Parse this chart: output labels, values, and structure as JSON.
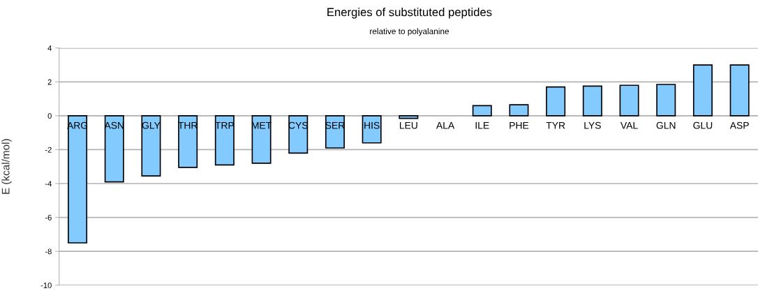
{
  "chart_data": {
    "type": "bar",
    "title": "Energies of substituted peptides",
    "subtitle": "relative to polyalanine",
    "ylabel": "E (kcal/mol)",
    "categories": [
      "ARG",
      "ASN",
      "GLY",
      "THR",
      "TRP",
      "MET",
      "CYS",
      "SER",
      "HIS",
      "LEU",
      "ALA",
      "ILE",
      "PHE",
      "TYR",
      "LYS",
      "VAL",
      "GLN",
      "GLU",
      "ASP"
    ],
    "values": [
      -7.5,
      -3.9,
      -3.55,
      -3.05,
      -2.9,
      -2.8,
      -2.2,
      -1.9,
      -1.6,
      -0.15,
      0,
      0.6,
      0.65,
      1.7,
      1.75,
      1.8,
      1.85,
      3.0,
      3.0
    ],
    "color": "#83caff",
    "ylim": [
      -10,
      4
    ],
    "yticks": [
      -10,
      -8,
      -6,
      -4,
      -2,
      0,
      2,
      4
    ],
    "grid": "y",
    "legend": false
  }
}
